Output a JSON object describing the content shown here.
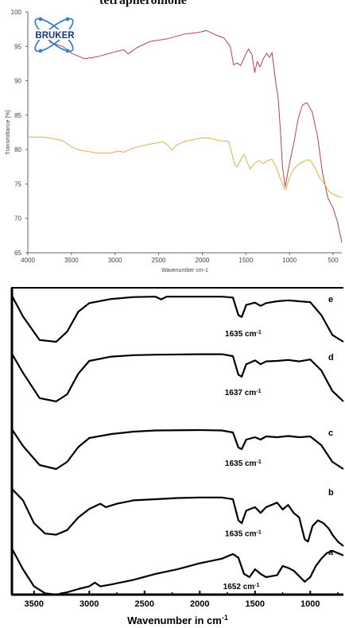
{
  "header_text": "tetrapheromone",
  "colors": {
    "series_red": "#b8404b",
    "series_orange": "#e0b04a",
    "logo_blue": "#3a7fd0",
    "black": "#000000"
  },
  "chart_data": [
    {
      "type": "line",
      "title": "",
      "logo_text": "BRUKER",
      "xlabel": "Wavenumber cm-1",
      "ylabel": "Transmittance [%]",
      "xlim": [
        4000,
        400
      ],
      "ylim": [
        65,
        100
      ],
      "xticks": [
        4000,
        3500,
        3000,
        2500,
        2000,
        1500,
        1000,
        500
      ],
      "yticks": [
        65,
        70,
        75,
        80,
        85,
        90,
        95,
        100
      ],
      "series": [
        {
          "color": "#b8404b",
          "points": [
            [
              3750,
              95.6
            ],
            [
              3600,
              95.0
            ],
            [
              3500,
              94.0
            ],
            [
              3350,
              93.2
            ],
            [
              3200,
              93.5
            ],
            [
              3000,
              94.2
            ],
            [
              2900,
              94.5
            ],
            [
              2850,
              93.9
            ],
            [
              2750,
              94.8
            ],
            [
              2600,
              95.7
            ],
            [
              2400,
              96.1
            ],
            [
              2200,
              96.8
            ],
            [
              2050,
              97.0
            ],
            [
              1950,
              97.3
            ],
            [
              1850,
              96.7
            ],
            [
              1750,
              96.2
            ],
            [
              1680,
              95.0
            ],
            [
              1640,
              92.3
            ],
            [
              1600,
              92.6
            ],
            [
              1560,
              92.2
            ],
            [
              1510,
              93.6
            ],
            [
              1470,
              94.6
            ],
            [
              1430,
              93.8
            ],
            [
              1400,
              91.2
            ],
            [
              1370,
              92.8
            ],
            [
              1340,
              92.0
            ],
            [
              1300,
              93.2
            ],
            [
              1260,
              94.0
            ],
            [
              1230,
              93.4
            ],
            [
              1200,
              94.1
            ],
            [
              1160,
              90.0
            ],
            [
              1130,
              87.5
            ],
            [
              1100,
              82.0
            ],
            [
              1080,
              77.5
            ],
            [
              1050,
              74.6
            ],
            [
              1000,
              78.0
            ],
            [
              950,
              81.0
            ],
            [
              900,
              84.5
            ],
            [
              850,
              86.5
            ],
            [
              800,
              86.8
            ],
            [
              740,
              85.5
            ],
            [
              680,
              82.0
            ],
            [
              620,
              76.5
            ],
            [
              560,
              73.0
            ],
            [
              500,
              71.5
            ],
            [
              450,
              69.5
            ],
            [
              400,
              66.5
            ]
          ]
        },
        {
          "color": "#e0b04a",
          "points": [
            [
              4000,
              81.8
            ],
            [
              3800,
              81.8
            ],
            [
              3600,
              81.3
            ],
            [
              3500,
              80.4
            ],
            [
              3400,
              79.9
            ],
            [
              3200,
              79.5
            ],
            [
              3050,
              79.5
            ],
            [
              2950,
              79.8
            ],
            [
              2900,
              79.6
            ],
            [
              2800,
              80.2
            ],
            [
              2600,
              80.8
            ],
            [
              2450,
              81.1
            ],
            [
              2400,
              80.7
            ],
            [
              2350,
              79.9
            ],
            [
              2300,
              80.6
            ],
            [
              2200,
              81.2
            ],
            [
              2000,
              81.7
            ],
            [
              1900,
              81.6
            ],
            [
              1800,
              81.3
            ],
            [
              1700,
              81.2
            ],
            [
              1660,
              79.4
            ],
            [
              1630,
              77.8
            ],
            [
              1600,
              77.5
            ],
            [
              1560,
              78.5
            ],
            [
              1520,
              79.3
            ],
            [
              1490,
              78.3
            ],
            [
              1450,
              77.2
            ],
            [
              1400,
              78.0
            ],
            [
              1350,
              78.4
            ],
            [
              1300,
              78.0
            ],
            [
              1250,
              78.4
            ],
            [
              1200,
              78.6
            ],
            [
              1150,
              77.4
            ],
            [
              1100,
              75.6
            ],
            [
              1060,
              74.4
            ],
            [
              1040,
              74.2
            ],
            [
              1000,
              76.0
            ],
            [
              950,
              77.2
            ],
            [
              900,
              77.8
            ],
            [
              850,
              78.2
            ],
            [
              800,
              78.5
            ],
            [
              760,
              78.4
            ],
            [
              700,
              77.2
            ],
            [
              650,
              75.8
            ],
            [
              600,
              75.0
            ],
            [
              550,
              74.0
            ],
            [
              500,
              73.5
            ],
            [
              400,
              73.0
            ]
          ]
        }
      ]
    },
    {
      "type": "line",
      "title": "",
      "xlabel": "Wavenumber in cm-1",
      "xlim": [
        3700,
        700
      ],
      "xticks": [
        3500,
        3000,
        2500,
        2000,
        1500,
        1000
      ],
      "series": [
        {
          "name": "e",
          "peak_label": "1635 cm-1",
          "peak_x": 1635,
          "points": [
            [
              3700,
              0.0
            ],
            [
              3600,
              0.45
            ],
            [
              3450,
              0.96
            ],
            [
              3300,
              1.0
            ],
            [
              3200,
              0.78
            ],
            [
              3100,
              0.35
            ],
            [
              3000,
              0.16
            ],
            [
              2800,
              0.07
            ],
            [
              2600,
              0.03
            ],
            [
              2400,
              0.02
            ],
            [
              2350,
              0.08
            ],
            [
              2300,
              0.02
            ],
            [
              2000,
              0.02
            ],
            [
              1800,
              0.02
            ],
            [
              1700,
              0.04
            ],
            [
              1650,
              0.42
            ],
            [
              1620,
              0.46
            ],
            [
              1580,
              0.2
            ],
            [
              1500,
              0.15
            ],
            [
              1450,
              0.22
            ],
            [
              1400,
              0.16
            ],
            [
              1300,
              0.12
            ],
            [
              1200,
              0.1
            ],
            [
              1100,
              0.12
            ],
            [
              1000,
              0.14
            ],
            [
              900,
              0.42
            ],
            [
              800,
              0.85
            ],
            [
              700,
              1.0
            ]
          ]
        },
        {
          "name": "d",
          "peak_label": "1637 cm-1",
          "peak_x": 1637,
          "points": [
            [
              3700,
              0.0
            ],
            [
              3600,
              0.4
            ],
            [
              3450,
              0.93
            ],
            [
              3300,
              1.0
            ],
            [
              3200,
              0.85
            ],
            [
              3100,
              0.42
            ],
            [
              3000,
              0.15
            ],
            [
              2800,
              0.06
            ],
            [
              2600,
              0.03
            ],
            [
              2400,
              0.02
            ],
            [
              2000,
              0.01
            ],
            [
              1800,
              0.01
            ],
            [
              1700,
              0.05
            ],
            [
              1650,
              0.44
            ],
            [
              1620,
              0.48
            ],
            [
              1580,
              0.22
            ],
            [
              1500,
              0.14
            ],
            [
              1450,
              0.22
            ],
            [
              1400,
              0.16
            ],
            [
              1300,
              0.15
            ],
            [
              1200,
              0.13
            ],
            [
              1100,
              0.16
            ],
            [
              1000,
              0.12
            ],
            [
              900,
              0.35
            ],
            [
              800,
              0.78
            ],
            [
              700,
              1.0
            ]
          ]
        },
        {
          "name": "c",
          "peak_label": "1635 cm-1",
          "peak_x": 1635,
          "points": [
            [
              3700,
              0.0
            ],
            [
              3600,
              0.42
            ],
            [
              3450,
              0.9
            ],
            [
              3300,
              1.0
            ],
            [
              3200,
              0.82
            ],
            [
              3100,
              0.45
            ],
            [
              3000,
              0.22
            ],
            [
              2800,
              0.12
            ],
            [
              2600,
              0.06
            ],
            [
              2400,
              0.03
            ],
            [
              2000,
              0.02
            ],
            [
              1800,
              0.03
            ],
            [
              1700,
              0.08
            ],
            [
              1650,
              0.46
            ],
            [
              1620,
              0.5
            ],
            [
              1580,
              0.26
            ],
            [
              1500,
              0.2
            ],
            [
              1450,
              0.26
            ],
            [
              1400,
              0.18
            ],
            [
              1300,
              0.2
            ],
            [
              1200,
              0.17
            ],
            [
              1100,
              0.2
            ],
            [
              1000,
              0.18
            ],
            [
              900,
              0.4
            ],
            [
              800,
              0.82
            ],
            [
              700,
              1.0
            ]
          ]
        },
        {
          "name": "b",
          "peak_label": "1635 cm-1",
          "peak_x": 1635,
          "points": [
            [
              3700,
              0.0
            ],
            [
              3600,
              0.2
            ],
            [
              3500,
              0.6
            ],
            [
              3400,
              0.78
            ],
            [
              3300,
              0.8
            ],
            [
              3200,
              0.72
            ],
            [
              3100,
              0.5
            ],
            [
              3000,
              0.35
            ],
            [
              2900,
              0.26
            ],
            [
              2850,
              0.32
            ],
            [
              2750,
              0.26
            ],
            [
              2600,
              0.2
            ],
            [
              2400,
              0.18
            ],
            [
              2200,
              0.16
            ],
            [
              2000,
              0.15
            ],
            [
              1800,
              0.15
            ],
            [
              1700,
              0.18
            ],
            [
              1650,
              0.55
            ],
            [
              1620,
              0.6
            ],
            [
              1580,
              0.38
            ],
            [
              1500,
              0.32
            ],
            [
              1450,
              0.42
            ],
            [
              1400,
              0.32
            ],
            [
              1350,
              0.28
            ],
            [
              1300,
              0.24
            ],
            [
              1250,
              0.36
            ],
            [
              1200,
              0.28
            ],
            [
              1150,
              0.42
            ],
            [
              1100,
              0.5
            ],
            [
              1050,
              0.88
            ],
            [
              1020,
              0.92
            ],
            [
              980,
              0.65
            ],
            [
              930,
              0.55
            ],
            [
              880,
              0.6
            ],
            [
              830,
              0.7
            ],
            [
              800,
              0.8
            ],
            [
              750,
              0.92
            ],
            [
              700,
              1.0
            ]
          ]
        },
        {
          "name": "a",
          "peak_label": "1652 cm-1",
          "peak_x": 1652,
          "points": [
            [
              3700,
              0.0
            ],
            [
              3600,
              0.45
            ],
            [
              3500,
              0.82
            ],
            [
              3400,
              0.97
            ],
            [
              3300,
              1.0
            ],
            [
              3200,
              0.95
            ],
            [
              3100,
              0.88
            ],
            [
              3000,
              0.82
            ],
            [
              2950,
              0.74
            ],
            [
              2900,
              0.82
            ],
            [
              2800,
              0.78
            ],
            [
              2600,
              0.68
            ],
            [
              2400,
              0.55
            ],
            [
              2200,
              0.45
            ],
            [
              2000,
              0.32
            ],
            [
              1800,
              0.22
            ],
            [
              1700,
              0.12
            ],
            [
              1650,
              0.2
            ],
            [
              1600,
              0.55
            ],
            [
              1550,
              0.62
            ],
            [
              1500,
              0.45
            ],
            [
              1450,
              0.55
            ],
            [
              1400,
              0.62
            ],
            [
              1300,
              0.58
            ],
            [
              1250,
              0.38
            ],
            [
              1200,
              0.42
            ],
            [
              1150,
              0.48
            ],
            [
              1100,
              0.6
            ],
            [
              1050,
              0.72
            ],
            [
              1000,
              0.62
            ],
            [
              950,
              0.38
            ],
            [
              900,
              0.22
            ],
            [
              850,
              0.1
            ],
            [
              800,
              0.05
            ],
            [
              750,
              0.1
            ],
            [
              700,
              0.15
            ]
          ]
        }
      ]
    }
  ]
}
